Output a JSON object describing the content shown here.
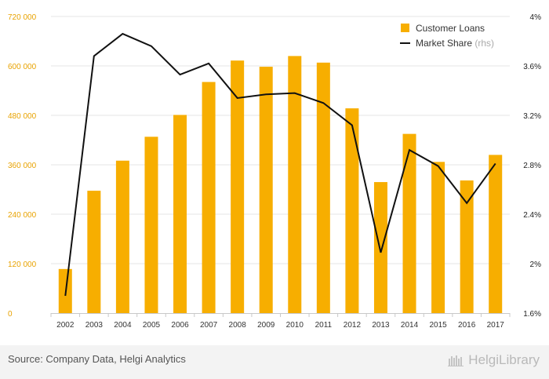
{
  "chart_data": {
    "type": "bar",
    "categories": [
      "2002",
      "2003",
      "2004",
      "2005",
      "2006",
      "2007",
      "2008",
      "2009",
      "2010",
      "2011",
      "2012",
      "2013",
      "2014",
      "2015",
      "2016",
      "2017"
    ],
    "series": [
      {
        "name": "Customer Loans",
        "type": "bar",
        "axis": "left",
        "values": [
          107000,
          297000,
          370000,
          428000,
          481000,
          561000,
          613000,
          598000,
          624000,
          608000,
          497000,
          318000,
          435000,
          367000,
          322000,
          384000
        ]
      },
      {
        "name": "Market Share",
        "name_suffix": "(rhs)",
        "type": "line",
        "axis": "right",
        "values": [
          1.74,
          3.68,
          3.86,
          3.76,
          3.53,
          3.62,
          3.34,
          3.37,
          3.38,
          3.3,
          3.12,
          2.09,
          2.92,
          2.79,
          2.49,
          2.81
        ]
      }
    ],
    "left_axis": {
      "min": 0,
      "max": 720000,
      "ticks": [
        "0",
        "120 000",
        "240 000",
        "360 000",
        "480 000",
        "600 000",
        "720 000"
      ]
    },
    "right_axis": {
      "min": 1.6,
      "max": 4.0,
      "ticks": [
        "1.6%",
        "2%",
        "2.4%",
        "2.8%",
        "3.2%",
        "3.6%",
        "4%"
      ]
    },
    "legend_position": "top-right",
    "grid": true,
    "colors": {
      "bar": "#f7ae00",
      "line": "#111111",
      "left_tick": "#e8a200",
      "right_tick": "#222222",
      "grid": "#e4e4e4"
    }
  },
  "footer": {
    "source": "Source: Company Data, Helgi Analytics",
    "brand": "HelgiLibrary"
  }
}
